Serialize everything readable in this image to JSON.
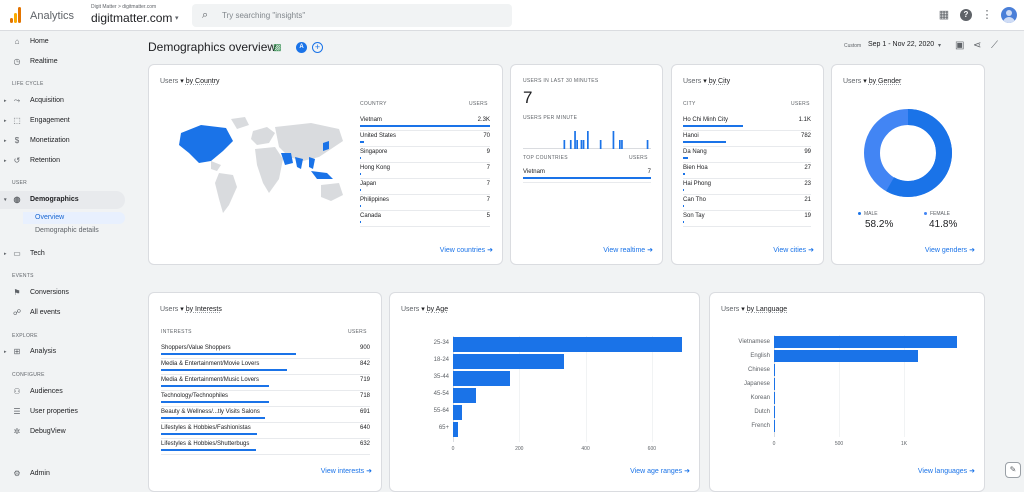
{
  "app": {
    "brand": "Analytics",
    "account_crumb": "Digit Matter > digitmatter.com",
    "account_name": "digitmatter.com",
    "search_placeholder": "Try searching \"insights\""
  },
  "colors": {
    "accent": "#1a73e8",
    "accent_light": "#4285f4",
    "map_highlight": "#1a73e8",
    "map_land": "#d9dbde"
  },
  "sidebar": {
    "top": [
      {
        "label": "Home",
        "icon": "home-icon"
      },
      {
        "label": "Realtime",
        "icon": "clock-icon"
      }
    ],
    "sections": {
      "lifecycle": "LIFE CYCLE",
      "user": "USER",
      "events": "EVENTS",
      "explore": "EXPLORE",
      "configure": "CONFIGURE"
    },
    "lifecycle": [
      {
        "label": "Acquisition",
        "icon": "acquisition-icon"
      },
      {
        "label": "Engagement",
        "icon": "engagement-icon"
      },
      {
        "label": "Monetization",
        "icon": "monetization-icon"
      },
      {
        "label": "Retention",
        "icon": "retention-icon"
      }
    ],
    "user": [
      {
        "label": "Demographics",
        "icon": "globe-icon"
      },
      {
        "label": "Tech",
        "icon": "tech-icon"
      }
    ],
    "user_sub": [
      "Overview",
      "Demographic details"
    ],
    "events": [
      {
        "label": "Conversions",
        "icon": "flag-icon"
      },
      {
        "label": "All events",
        "icon": "events-icon"
      }
    ],
    "explore": [
      {
        "label": "Analysis",
        "icon": "analysis-icon"
      }
    ],
    "configure": [
      {
        "label": "Audiences",
        "icon": "audiences-icon"
      },
      {
        "label": "User properties",
        "icon": "user-properties-icon"
      },
      {
        "label": "DebugView",
        "icon": "debug-icon"
      }
    ],
    "admin": "Admin"
  },
  "page": {
    "title": "Demographics overview",
    "compare_badge": "A",
    "date_custom": "Custom",
    "date_range": "Sep 1 - Nov 22, 2020"
  },
  "country_card": {
    "users_label": "Users",
    "dimension": "by Country",
    "col_country": "COUNTRY",
    "col_users": "USERS",
    "rows": [
      {
        "name": "Vietnam",
        "value": "2.3K",
        "share": 1.0
      },
      {
        "name": "United States",
        "value": "70",
        "share": 0.03
      },
      {
        "name": "Singapore",
        "value": "9",
        "share": 0.004
      },
      {
        "name": "Hong Kong",
        "value": "7",
        "share": 0.003
      },
      {
        "name": "Japan",
        "value": "7",
        "share": 0.003
      },
      {
        "name": "Philippines",
        "value": "7",
        "share": 0.003
      },
      {
        "name": "Canada",
        "value": "5",
        "share": 0.002
      }
    ],
    "link": "View countries"
  },
  "realtime_card": {
    "title": "USERS IN LAST 30 MINUTES",
    "count": "7",
    "per_minute_label": "USERS PER MINUTE",
    "per_minute": [
      0,
      0,
      0,
      0,
      0,
      0,
      0,
      0,
      0,
      0,
      0,
      0,
      0,
      0,
      0,
      0,
      0,
      0,
      0,
      1,
      0,
      0,
      1,
      0,
      2,
      1,
      0,
      1,
      1,
      0,
      2,
      0,
      0,
      0,
      0,
      0,
      1,
      0,
      0,
      0,
      0,
      0,
      2,
      0,
      0,
      1,
      1,
      0,
      0,
      0,
      0,
      0,
      0,
      0,
      0,
      0,
      0,
      0,
      1,
      0
    ],
    "col_country": "TOP COUNTRIES",
    "col_users": "USERS",
    "rows": [
      {
        "name": "Vietnam",
        "value": "7",
        "share": 1.0
      }
    ],
    "link": "View realtime"
  },
  "city_card": {
    "users_label": "Users",
    "dimension": "by City",
    "col_city": "CITY",
    "col_users": "USERS",
    "rows": [
      {
        "name": "Ho Chi Minh City",
        "value": "1.1K",
        "share": 1.0
      },
      {
        "name": "Hanoi",
        "value": "782",
        "share": 0.71
      },
      {
        "name": "Da Nang",
        "value": "99",
        "share": 0.09
      },
      {
        "name": "Bien Hoa",
        "value": "27",
        "share": 0.025
      },
      {
        "name": "Hai Phong",
        "value": "23",
        "share": 0.021
      },
      {
        "name": "Can Tho",
        "value": "21",
        "share": 0.019
      },
      {
        "name": "Son Tay",
        "value": "19",
        "share": 0.017
      }
    ],
    "link": "View cities"
  },
  "gender_card": {
    "users_label": "Users",
    "dimension": "by Gender",
    "male_label": "MALE",
    "male_value": "58.2%",
    "male_share": 0.582,
    "female_label": "FEMALE",
    "female_value": "41.8%",
    "female_share": 0.418,
    "link": "View genders"
  },
  "interests_card": {
    "users_label": "Users",
    "dimension": "by Interests",
    "col_interests": "INTERESTS",
    "col_users": "USERS",
    "rows": [
      {
        "name": "Shoppers/Value Shoppers",
        "value": "900",
        "share": 1.0
      },
      {
        "name": "Media & Entertainment/Movie Lovers",
        "value": "842",
        "share": 0.936
      },
      {
        "name": "Media & Entertainment/Music Lovers",
        "value": "719",
        "share": 0.8
      },
      {
        "name": "Technology/Technophiles",
        "value": "718",
        "share": 0.8
      },
      {
        "name": "Beauty & Wellness/...tly Visits Salons",
        "value": "691",
        "share": 0.77
      },
      {
        "name": "Lifestyles & Hobbies/Fashionistas",
        "value": "640",
        "share": 0.71
      },
      {
        "name": "Lifestyles & Hobbies/Shutterbugs",
        "value": "632",
        "share": 0.7
      }
    ],
    "link": "View interests"
  },
  "age_card": {
    "users_label": "Users",
    "dimension": "by Age",
    "link": "View age ranges"
  },
  "language_card": {
    "users_label": "Users",
    "dimension": "by Language",
    "link": "View languages"
  },
  "chart_data": [
    {
      "type": "bar",
      "orientation": "horizontal",
      "title": "Users by Age",
      "categories": [
        "25-34",
        "18-24",
        "35-44",
        "45-54",
        "55-64",
        "65+"
      ],
      "values": [
        690,
        335,
        172,
        68,
        28,
        15
      ],
      "xlim": [
        0,
        700
      ],
      "xticks": [
        "0",
        "200",
        "400",
        "600"
      ],
      "grid": true
    },
    {
      "type": "bar",
      "orientation": "horizontal",
      "title": "Users by Language",
      "categories": [
        "Vietnamese",
        "English",
        "Chinese",
        "Japanese",
        "Korean",
        "Dutch",
        "French"
      ],
      "values": [
        1410,
        1110,
        8,
        5,
        3,
        2,
        1
      ],
      "xlim": [
        0,
        1500
      ],
      "xticks": [
        "0",
        "500",
        "1K"
      ],
      "grid": true
    }
  ]
}
